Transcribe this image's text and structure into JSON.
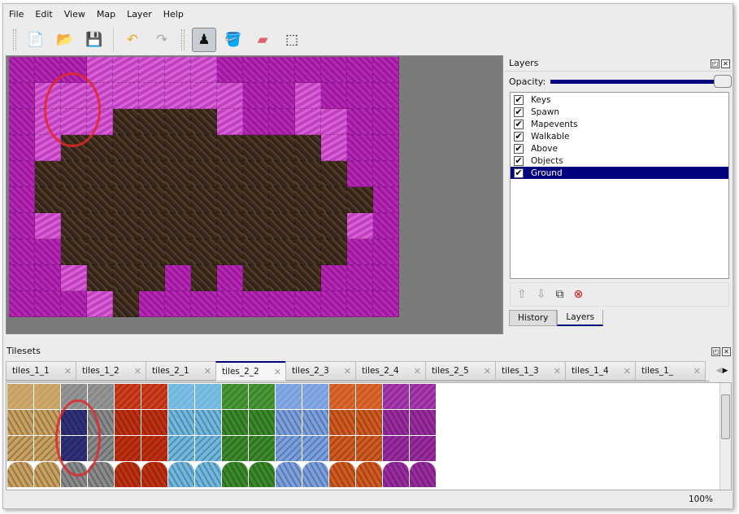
{
  "menu": [
    "File",
    "Edit",
    "View",
    "Map",
    "Layer",
    "Help"
  ],
  "toolbar": [
    {
      "name": "new-map-icon",
      "glyph": "📄"
    },
    {
      "name": "open-icon",
      "glyph": "📂"
    },
    {
      "name": "save-icon",
      "glyph": "💾"
    },
    {
      "name": "undo-icon",
      "glyph": "↶"
    },
    {
      "name": "redo-icon",
      "glyph": "↷"
    },
    {
      "name": "stamp-brush-icon",
      "glyph": "♟",
      "active": true
    },
    {
      "name": "bucket-fill-icon",
      "glyph": "🪣"
    },
    {
      "name": "eraser-icon",
      "glyph": "▰"
    },
    {
      "name": "rect-select-icon",
      "glyph": "⬚"
    }
  ],
  "map": {
    "tiles": [
      "mmmlllllmmmmmmm",
      "mllllllllmmlmmm",
      "mlllbbbblmmllmm",
      "mlbbbbbbbbbblmm",
      "mbbbbbbbbbbbbmm",
      "mbbbbbbbbbbbbbm",
      "mlbbbbbbbbbbblm",
      "mmbbbbbbbbbbbmm",
      "mmlbbbmbmbbbmmm",
      "mmmlbmmmmmmmmmm"
    ]
  },
  "layers": {
    "title": "Layers",
    "opacity_label": "Opacity:",
    "opacity": 1.0,
    "items": [
      {
        "label": "Keys",
        "checked": true
      },
      {
        "label": "Spawn",
        "checked": true
      },
      {
        "label": "Mapevents",
        "checked": true
      },
      {
        "label": "Walkable",
        "checked": true
      },
      {
        "label": "Above",
        "checked": true
      },
      {
        "label": "Objects",
        "checked": true
      },
      {
        "label": "Ground",
        "checked": true,
        "selected": true
      }
    ],
    "tabs": [
      "History",
      "Layers"
    ],
    "active_tab": "Layers"
  },
  "tilesets": {
    "title": "Tilesets",
    "tabs": [
      "tiles_1_1",
      "tiles_1_2",
      "tiles_2_1",
      "tiles_2_2",
      "tiles_2_3",
      "tiles_2_4",
      "tiles_2_5",
      "tiles_1_3",
      "tiles_1_4",
      "tiles_1_"
    ],
    "active_tab": "tiles_2_2",
    "palette": [
      "#c8a060",
      "#8a8a8a",
      "#c03010",
      "#70b8e0",
      "#3a8a2a",
      "#7aa0e0",
      "#d05a20",
      "#9a2aa0"
    ],
    "selected_color": "#30307a"
  },
  "status": {
    "zoom": "100%"
  }
}
